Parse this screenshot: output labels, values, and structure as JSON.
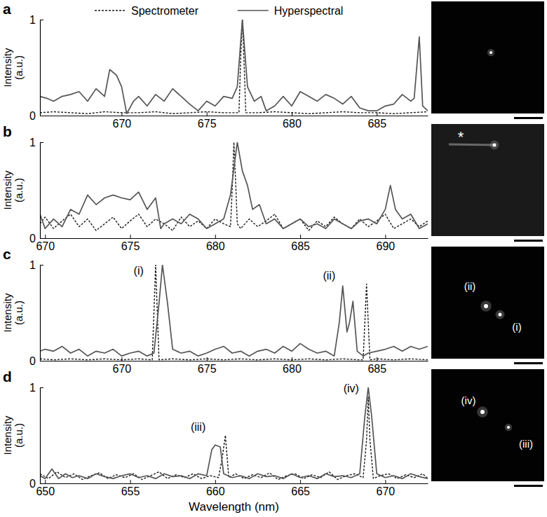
{
  "chart_data": [
    {
      "type": "line",
      "panel_label": "a",
      "ylabel": "Intensity (a.u.)",
      "xlim": [
        665.2,
        688
      ],
      "xticks": [
        670,
        675,
        680,
        685
      ],
      "ylim": [
        0,
        1
      ],
      "yticks": [
        0,
        1
      ],
      "legend": "top",
      "series": [
        {
          "name": "Spectrometer",
          "color": "#1a1a1a",
          "line_style": "dashed",
          "x": [
            665.2,
            666,
            667,
            668,
            669,
            670,
            671,
            672,
            673,
            674,
            675,
            676,
            676.9,
            677.0,
            677.1,
            677.2,
            677.3,
            678,
            679,
            680,
            681,
            682,
            683,
            684,
            685,
            686,
            687,
            688
          ],
          "values": [
            0.03,
            0.04,
            0.03,
            0.02,
            0.04,
            0.03,
            0.03,
            0.04,
            0.02,
            0.03,
            0.04,
            0.03,
            0.03,
            0.6,
            1,
            0.55,
            0.03,
            0.03,
            0.04,
            0.03,
            0.02,
            0.03,
            0.04,
            0.03,
            0.03,
            0.02,
            0.03,
            0.04
          ]
        },
        {
          "name": "Hyperspectral",
          "color": "#555555",
          "line_style": "solid",
          "x": [
            665.2,
            665.6,
            666,
            666.5,
            667,
            667.5,
            668,
            668.5,
            669,
            669.3,
            669.7,
            670,
            670.3,
            670.7,
            671,
            671.5,
            672,
            672.5,
            673,
            673.5,
            674,
            674.5,
            675,
            675.5,
            676,
            676.5,
            676.8,
            677.1,
            677.4,
            677.8,
            678.2,
            678.5,
            679,
            679.5,
            680,
            680.5,
            681,
            681.5,
            682,
            682.5,
            683,
            683.5,
            684,
            684.5,
            685,
            685.5,
            686,
            686.5,
            687,
            687.2,
            687.5,
            687.7,
            688
          ],
          "values": [
            0.2,
            0.18,
            0.15,
            0.2,
            0.22,
            0.25,
            0.15,
            0.28,
            0.2,
            0.48,
            0.42,
            0.3,
            0.02,
            0.15,
            0.2,
            0.1,
            0.22,
            0.15,
            0.28,
            0.2,
            0.12,
            0.05,
            0.15,
            0.1,
            0.2,
            0.18,
            0.3,
            1,
            0.3,
            0.15,
            0.2,
            0.05,
            0.1,
            0.2,
            0.1,
            0.25,
            0.2,
            0.15,
            0.22,
            0.18,
            0.12,
            0.2,
            0.08,
            0.05,
            0.05,
            0.1,
            0.12,
            0.22,
            0.15,
            0.18,
            0.82,
            0.1,
            0.05
          ]
        }
      ]
    },
    {
      "type": "line",
      "panel_label": "b",
      "ylabel": "Intensity (a.u.)",
      "xlim": [
        669.7,
        692.5
      ],
      "xticks": [
        670,
        675,
        680,
        685,
        690
      ],
      "ylim": [
        0,
        1
      ],
      "yticks": [
        0,
        1
      ],
      "series": [
        {
          "color": "#1a1a1a",
          "line_style": "dashed",
          "x": [
            669.7,
            670,
            670.5,
            671,
            671.5,
            672,
            672.5,
            673,
            673.5,
            674,
            674.5,
            675,
            675.5,
            676,
            676.5,
            677,
            677.5,
            678,
            678.5,
            679,
            679.5,
            680,
            680.5,
            680.9,
            681.0,
            681.1,
            681.2,
            681.3,
            681.5,
            682,
            682.5,
            683,
            683.5,
            684,
            684.5,
            685,
            685.5,
            686,
            686.5,
            687,
            687.5,
            688,
            688.5,
            689,
            689.5,
            690,
            690.5,
            691,
            691.5,
            692,
            692.5
          ],
          "values": [
            0.15,
            0.22,
            0.1,
            0.18,
            0.25,
            0.12,
            0.2,
            0.08,
            0.15,
            0.22,
            0.1,
            0.18,
            0.25,
            0.12,
            0.2,
            0.15,
            0.08,
            0.22,
            0.12,
            0.18,
            0.1,
            0.2,
            0.15,
            0.12,
            0.5,
            1,
            0.6,
            0.15,
            0.1,
            0.2,
            0.12,
            0.18,
            0.25,
            0.1,
            0.15,
            0.2,
            0.08,
            0.18,
            0.12,
            0.22,
            0.15,
            0.1,
            0.2,
            0.12,
            0.18,
            0.25,
            0.1,
            0.15,
            0.2,
            0.12,
            0.18
          ]
        },
        {
          "color": "#555555",
          "line_style": "solid",
          "x": [
            669.7,
            670,
            670.5,
            671,
            671.5,
            672,
            672.5,
            673,
            673.5,
            674,
            674.5,
            675,
            675.5,
            676,
            676.5,
            676.8,
            677,
            677.5,
            678,
            678.5,
            679,
            679.5,
            680,
            680.5,
            680.9,
            681.3,
            681.6,
            681.9,
            682.2,
            682.6,
            683,
            683.5,
            684,
            684.5,
            685,
            685.5,
            686,
            686.5,
            687,
            687.5,
            688,
            688.5,
            689,
            689.5,
            690,
            690.3,
            690.6,
            691,
            691.5,
            692,
            692.5
          ],
          "values": [
            0.25,
            0.1,
            0.2,
            0.12,
            0.3,
            0.25,
            0.45,
            0.35,
            0.42,
            0.45,
            0.42,
            0.4,
            0.48,
            0.3,
            0.42,
            0.1,
            0.15,
            0.2,
            0.15,
            0.25,
            0.2,
            0.1,
            0.15,
            0.2,
            0.45,
            1,
            0.7,
            0.55,
            0.3,
            0.35,
            0.15,
            0.2,
            0.1,
            0.15,
            0.2,
            0.12,
            0.15,
            0.1,
            0.2,
            0.15,
            0.1,
            0.18,
            0.2,
            0.15,
            0.3,
            0.55,
            0.3,
            0.2,
            0.25,
            0.1,
            0.15
          ]
        }
      ],
      "image_labels": [
        "*"
      ]
    },
    {
      "type": "line",
      "panel_label": "c",
      "ylabel": "Intensity (a.u.)",
      "xlim": [
        665.2,
        688
      ],
      "xticks": [
        670,
        675,
        680,
        685
      ],
      "ylim": [
        0,
        1
      ],
      "yticks": [
        0,
        1
      ],
      "series": [
        {
          "color": "#1a1a1a",
          "line_style": "dashed",
          "x": [
            665.2,
            666,
            667,
            668,
            669,
            670,
            671,
            671.8,
            671.9,
            672.0,
            672.1,
            672.2,
            673,
            674,
            675,
            676,
            677,
            678,
            679,
            680,
            681,
            682,
            683,
            684,
            684.2,
            684.3,
            684.4,
            684.5,
            684.6,
            685,
            686,
            687,
            688
          ],
          "values": [
            0.02,
            0.01,
            0.02,
            0.01,
            0.02,
            0.01,
            0.02,
            0.01,
            0.5,
            1,
            0.5,
            0.01,
            0.02,
            0.01,
            0.02,
            0.01,
            0.02,
            0.01,
            0.02,
            0.01,
            0.02,
            0.01,
            0.02,
            0.01,
            0.01,
            0.4,
            0.8,
            0.4,
            0.01,
            0.02,
            0.01,
            0.02,
            0.01
          ]
        },
        {
          "color": "#555555",
          "line_style": "solid",
          "x": [
            665.2,
            665.5,
            666,
            666.5,
            667,
            667.5,
            668,
            668.5,
            669,
            669.5,
            670,
            670.5,
            671,
            671.5,
            671.9,
            672.2,
            672.4,
            672.7,
            673,
            673.5,
            674,
            674.5,
            675,
            675.5,
            676,
            676.5,
            677,
            677.5,
            678,
            678.5,
            679,
            679.5,
            680,
            680.5,
            681,
            681.5,
            682,
            682.5,
            682.8,
            683,
            683.25,
            683.4,
            683.6,
            683.85,
            684.2,
            684.5,
            685,
            685.5,
            686,
            686.5,
            687,
            687.5,
            688
          ],
          "values": [
            0.1,
            0.12,
            0.1,
            0.15,
            0.08,
            0.12,
            0.05,
            0.1,
            0.08,
            0.12,
            0.05,
            0.08,
            0.1,
            0.05,
            0.08,
            0.6,
            1,
            0.6,
            0.12,
            0.08,
            0.1,
            0.05,
            0.08,
            0.12,
            0.15,
            0.08,
            0.1,
            0.05,
            0.1,
            0.12,
            0.08,
            0.15,
            0.1,
            0.18,
            0.12,
            0.08,
            0.1,
            0.05,
            0.4,
            0.78,
            0.3,
            0.4,
            0.62,
            0.1,
            0.05,
            0.08,
            0.1,
            0.12,
            0.15,
            0.1,
            0.15,
            0.12,
            0.15
          ]
        }
      ],
      "annotations": [
        {
          "text": "(i)",
          "x": 671.0,
          "y": 0.9
        },
        {
          "text": "(ii)",
          "x": 682.2,
          "y": 0.85
        }
      ],
      "image_labels": [
        "(ii)",
        "(i)"
      ]
    },
    {
      "type": "line",
      "panel_label": "d",
      "ylabel": "Intensity (a.u.)",
      "xlabel": "Wavelength (nm)",
      "xlim": [
        649.7,
        672.5
      ],
      "xticks": [
        650,
        655,
        660,
        665,
        670
      ],
      "ylim": [
        0,
        1
      ],
      "yticks": [
        0,
        1
      ],
      "series": [
        {
          "color": "#1a1a1a",
          "line_style": "dashed",
          "x": [
            649.7,
            650.2,
            650.7,
            651.2,
            651.7,
            652.2,
            652.7,
            653.2,
            653.7,
            654.2,
            654.7,
            655.2,
            655.7,
            656.2,
            656.7,
            657.2,
            657.7,
            658.2,
            658.7,
            659.2,
            659.7,
            660.2,
            660.4,
            660.6,
            660.8,
            661.2,
            661.7,
            662.2,
            662.7,
            663.2,
            663.7,
            664.2,
            664.7,
            665.2,
            665.7,
            666.2,
            666.7,
            667.2,
            667.7,
            668.2,
            668.7,
            668.9,
            669.0,
            669.1,
            669.3,
            669.7,
            670.2,
            670.7,
            671.2,
            671.7,
            672.2,
            672.5
          ],
          "values": [
            0.1,
            0.05,
            0.12,
            0.06,
            0.1,
            0.04,
            0.08,
            0.11,
            0.05,
            0.09,
            0.06,
            0.1,
            0.04,
            0.08,
            0.12,
            0.05,
            0.09,
            0.06,
            0.1,
            0.05,
            0.08,
            0.06,
            0.25,
            0.5,
            0.06,
            0.1,
            0.05,
            0.09,
            0.06,
            0.11,
            0.04,
            0.08,
            0.1,
            0.05,
            0.09,
            0.06,
            0.12,
            0.04,
            0.08,
            0.1,
            0.06,
            0.45,
            0.9,
            0.45,
            0.05,
            0.08,
            0.1,
            0.05,
            0.09,
            0.06,
            0.1,
            0.05
          ]
        },
        {
          "color": "#555555",
          "line_style": "solid",
          "x": [
            649.7,
            650,
            650.4,
            650.8,
            651.2,
            651.6,
            652,
            652.5,
            653,
            653.5,
            654,
            654.5,
            655,
            655.5,
            656,
            656.5,
            657,
            657.5,
            658,
            658.5,
            659,
            659.5,
            659.8,
            660,
            660.3,
            660.5,
            661,
            661.5,
            662,
            662.5,
            663,
            663.5,
            664,
            664.5,
            665,
            665.5,
            666,
            666.5,
            667,
            667.5,
            668,
            668.5,
            668.8,
            669,
            669.2,
            669.5,
            670,
            670.5,
            671,
            671.5,
            672,
            672.5
          ],
          "values": [
            0.08,
            0.05,
            0.15,
            0.05,
            0.1,
            0.06,
            0.08,
            0.05,
            0.1,
            0.07,
            0.05,
            0.08,
            0.1,
            0.06,
            0.08,
            0.05,
            0.1,
            0.07,
            0.08,
            0.05,
            0.1,
            0.08,
            0.35,
            0.4,
            0.38,
            0.1,
            0.06,
            0.08,
            0.05,
            0.1,
            0.07,
            0.08,
            0.05,
            0.1,
            0.06,
            0.08,
            0.05,
            0.1,
            0.07,
            0.08,
            0.06,
            0.1,
            0.7,
            1,
            0.7,
            0.1,
            0.06,
            0.08,
            0.05,
            0.1,
            0.07,
            0.05
          ]
        }
      ],
      "annotations": [
        {
          "text": "(iii)",
          "x": 659.0,
          "y": 0.55
        },
        {
          "text": "(iv)",
          "x": 668.0,
          "y": 0.95
        }
      ],
      "image_labels": [
        "(iv)",
        "(iii)"
      ]
    }
  ]
}
